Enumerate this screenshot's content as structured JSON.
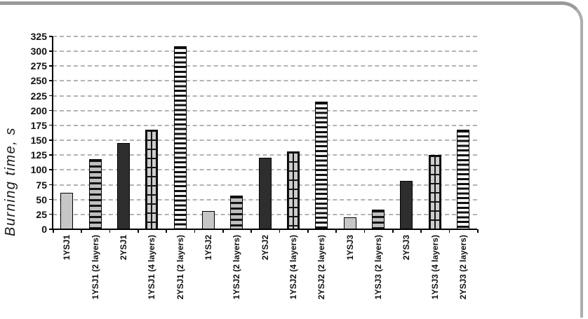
{
  "frame": {
    "border_top_color": "#9a9a9a",
    "border_right_color": "#adadad",
    "background": "#ffffff"
  },
  "chart_data": {
    "type": "bar",
    "title": "",
    "xlabel": "",
    "ylabel": "Burning time, s",
    "ylim": [
      0,
      325
    ],
    "ytick_step": 25,
    "yticks": [
      0,
      25,
      50,
      75,
      100,
      125,
      150,
      175,
      200,
      225,
      250,
      275,
      300,
      325
    ],
    "grid": "horizontal-dashed",
    "legend_position": "none",
    "categories": [
      "1YSJ1",
      "1YSJ1 (2 layers)",
      "2YSJ1",
      "1YSJ1 (4 layers)",
      "2YSJ1 (2 layers)",
      "1YSJ2",
      "1YSJ2 (2 layers)",
      "2YSJ2",
      "1YSJ2 (4 layers)",
      "2YSJ2 (2 layers)",
      "1YSJ3",
      "1YSJ3 (2 layers)",
      "2YSJ3",
      "1YSJ3 (4 layers)",
      "2YSJ3 (2 layers)"
    ],
    "values": [
      62,
      118,
      145,
      168,
      308,
      31,
      57,
      120,
      131,
      215,
      20,
      33,
      81,
      125,
      168
    ],
    "bar_patterns": [
      "solid-light",
      "stripe-gray",
      "solid-dark",
      "grid",
      "stripe-fine",
      "solid-light",
      "stripe-gray",
      "solid-dark",
      "grid",
      "stripe-fine",
      "solid-light",
      "stripe-gray",
      "solid-dark",
      "grid",
      "stripe-fine"
    ],
    "colors": {
      "bar_light": "#c6c6c6",
      "bar_dark": "#2e2e2e",
      "bar_stripe_ink": "#141414",
      "gridline": "#b3b3b3",
      "axis": "#000000"
    }
  }
}
